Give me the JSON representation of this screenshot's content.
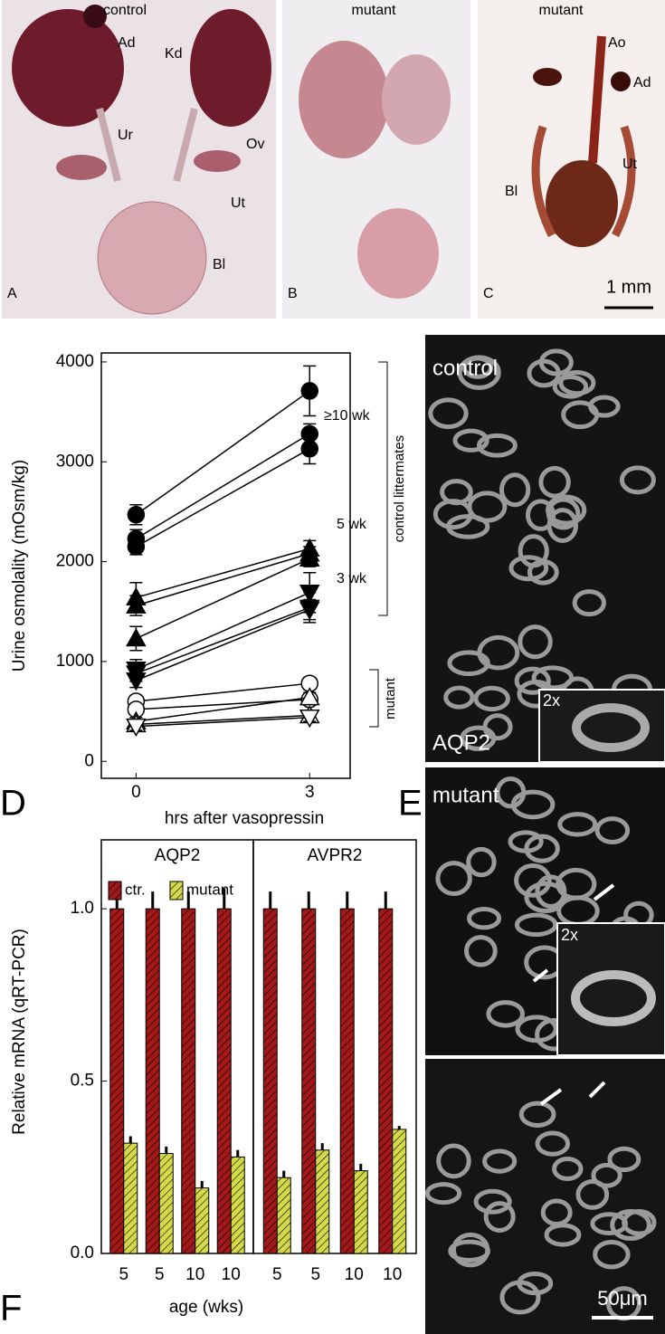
{
  "panels": {
    "A": {
      "letter": "A",
      "title": "control",
      "labels": [
        "Ad",
        "Kd",
        "Ur",
        "Ov",
        "Ut",
        "Bl"
      ]
    },
    "B": {
      "letter": "B",
      "title": "mutant"
    },
    "C": {
      "letter": "C",
      "title": "mutant",
      "labels": [
        "Ao",
        "Ad",
        "Ut",
        "Bl"
      ],
      "scale_bar": "1 mm"
    },
    "D": {
      "letter": "D"
    },
    "E": {
      "letter": "E",
      "control_title": "control",
      "stain": "AQP2",
      "control_inset": "2x",
      "mutant_title": "mutant",
      "mutant_inset": "2x",
      "scale_bar": "50μm"
    },
    "F": {
      "letter": "F"
    }
  },
  "chart_data": [
    {
      "type": "line",
      "xlabel": "hrs after vasopressin",
      "ylabel": "Urine osmolality (mOsm/kg)",
      "x": [
        0,
        3
      ],
      "xlim": [
        -0.6,
        3.7
      ],
      "xticks": [
        0,
        3
      ],
      "ylim": [
        -170,
        4090
      ],
      "yticks": [
        0,
        1000,
        2000,
        3000,
        4000
      ],
      "annotations": [
        "≥10 wk",
        "5 wk",
        "3 wk",
        "control littermates",
        "mutant"
      ],
      "series": [
        {
          "marker": "circle",
          "filled": true,
          "color": "#000000",
          "values": [
            2470,
            3710
          ],
          "errors": [
            100,
            250
          ]
        },
        {
          "marker": "circle",
          "filled": true,
          "color": "#000000",
          "values": [
            2230,
            3280
          ],
          "errors": [
            90,
            100
          ]
        },
        {
          "marker": "circle",
          "filled": true,
          "color": "#000000",
          "values": [
            2150,
            3130
          ],
          "errors": [
            80,
            150
          ]
        },
        {
          "marker": "triangle-up",
          "filled": true,
          "color": "#000000",
          "values": [
            1640,
            2130
          ],
          "errors": [
            150,
            80
          ]
        },
        {
          "marker": "triangle-up",
          "filled": true,
          "color": "#000000",
          "values": [
            1560,
            2080
          ],
          "errors": [
            100,
            70
          ]
        },
        {
          "marker": "triangle-up",
          "filled": true,
          "color": "#000000",
          "values": [
            1230,
            2030
          ],
          "errors": [
            120,
            80
          ]
        },
        {
          "marker": "triangle-down",
          "filled": true,
          "color": "#000000",
          "values": [
            920,
            1690
          ],
          "errors": [
            100,
            200
          ]
        },
        {
          "marker": "triangle-down",
          "filled": true,
          "color": "#000000",
          "values": [
            880,
            1540
          ],
          "errors": [
            80,
            150
          ]
        },
        {
          "marker": "triangle-down",
          "filled": true,
          "color": "#000000",
          "values": [
            810,
            1520
          ],
          "errors": [
            70,
            100
          ]
        },
        {
          "marker": "circle",
          "filled": false,
          "color": "#000000",
          "values": [
            600,
            780
          ],
          "errors": [
            60,
            60
          ]
        },
        {
          "marker": "circle",
          "filled": false,
          "color": "#000000",
          "values": [
            520,
            620
          ],
          "errors": [
            50,
            50
          ]
        },
        {
          "marker": "triangle-up",
          "filled": false,
          "color": "#000000",
          "values": [
            400,
            640
          ],
          "errors": [
            40,
            50
          ]
        },
        {
          "marker": "triangle-up",
          "filled": false,
          "color": "#000000",
          "values": [
            370,
            460
          ],
          "errors": [
            40,
            40
          ]
        },
        {
          "marker": "triangle-down",
          "filled": false,
          "color": "#000000",
          "values": [
            350,
            440
          ],
          "errors": [
            40,
            40
          ]
        }
      ]
    },
    {
      "type": "bar",
      "title": "AQP2",
      "ylabel": "Relative mRNA (qRT-PCR)",
      "xlabel": "age (wks)",
      "categories": [
        "5",
        "5",
        "10",
        "10"
      ],
      "ylim": [
        0,
        1.2
      ],
      "yticks": [
        {
          "value": 0,
          "label": "0.0"
        },
        0.5,
        {
          "value": 1,
          "label": "1.0"
        }
      ],
      "series": [
        {
          "name": "ctr.",
          "color": "#a31818",
          "values": [
            1,
            1,
            1,
            1
          ],
          "errors": [
            0.05,
            0.05,
            0.05,
            0.06
          ]
        },
        {
          "name": "mutant",
          "color": "#d4d94a",
          "values": [
            0.32,
            0.29,
            0.19,
            0.28
          ],
          "errors": [
            0.02,
            0.02,
            0.02,
            0.02
          ]
        }
      ]
    },
    {
      "type": "bar",
      "title": "AVPR2",
      "categories": [
        "5",
        "5",
        "10",
        "10"
      ],
      "ylim": [
        0,
        1.2
      ],
      "series": [
        {
          "color": "#a31818",
          "values": [
            1,
            1,
            1,
            1
          ],
          "errors": [
            0.05,
            0.05,
            0.05,
            0.05
          ]
        },
        {
          "color": "#d4d94a",
          "values": [
            0.22,
            0.3,
            0.24,
            0.36
          ],
          "errors": [
            0.02,
            0.02,
            0.02,
            0.01
          ]
        }
      ]
    }
  ]
}
